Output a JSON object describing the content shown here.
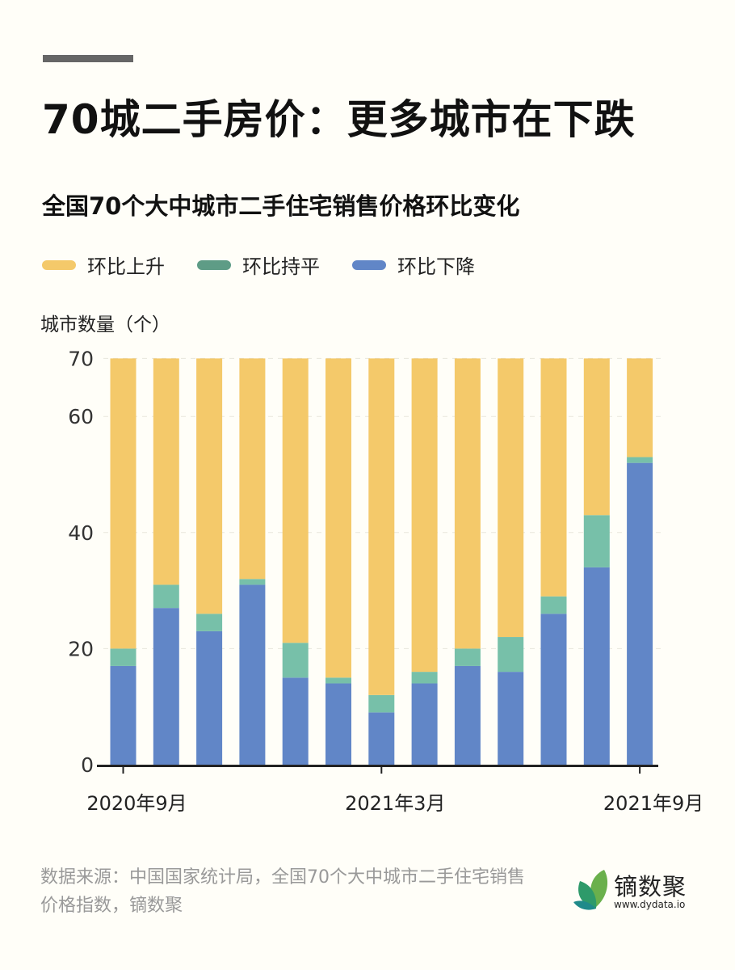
{
  "title": "70城二手房价：更多城市在下跌",
  "subtitle": "全国70个大中城市二手住宅销售价格环比变化",
  "legend": [
    {
      "label": "环比上升",
      "color": "#f4c96a"
    },
    {
      "label": "环比持平",
      "color": "#5e9c86"
    },
    {
      "label": "环比下降",
      "color": "#6186c7"
    }
  ],
  "source": "数据来源：中国国家统计局，全国70个大中城市二手住宅销售价格指数，镝数聚",
  "logo": {
    "name": "镝数聚",
    "url": "www.dydata.io"
  },
  "chart_data": {
    "type": "bar",
    "stacked": true,
    "ylabel": "城市数量（个）",
    "ylim": [
      0,
      70
    ],
    "yticks": [
      0,
      20,
      40,
      60,
      70
    ],
    "grid": true,
    "categories": [
      "2020-09",
      "2020-10",
      "2020-11",
      "2020-12",
      "2021-01",
      "2021-02",
      "2021-03",
      "2021-04",
      "2021-05",
      "2021-06",
      "2021-07",
      "2021-08",
      "2021-09"
    ],
    "xtick_labels": [
      {
        "index": 0,
        "label": "2020年9月"
      },
      {
        "index": 6,
        "label": "2021年3月"
      },
      {
        "index": 12,
        "label": "2021年9月"
      }
    ],
    "series": [
      {
        "name": "环比下降",
        "color": "#6186c7",
        "values": [
          17,
          27,
          23,
          31,
          15,
          14,
          9,
          14,
          17,
          16,
          26,
          34,
          52
        ]
      },
      {
        "name": "环比持平",
        "color": "#77c0a9",
        "values": [
          3,
          4,
          3,
          1,
          6,
          1,
          3,
          2,
          3,
          6,
          3,
          9,
          1
        ]
      },
      {
        "name": "环比上升",
        "color": "#f4c96a",
        "values": [
          50,
          39,
          44,
          38,
          49,
          55,
          58,
          54,
          50,
          48,
          41,
          27,
          17
        ]
      }
    ]
  }
}
